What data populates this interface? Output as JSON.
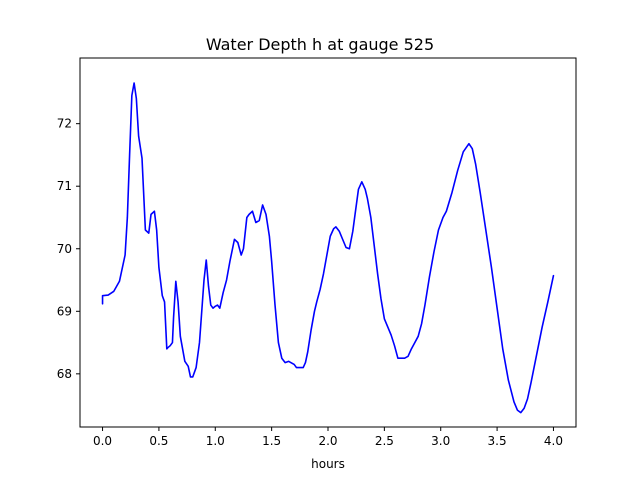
{
  "chart_data": {
    "type": "line",
    "title": "Water Depth h at gauge 525",
    "xlabel": "hours",
    "ylabel": "",
    "xlim": [
      -0.2,
      4.2
    ],
    "ylim": [
      67.15,
      73.05
    ],
    "grid": false,
    "x_ticks": [
      0.0,
      0.5,
      1.0,
      1.5,
      2.0,
      2.5,
      3.0,
      3.5,
      4.0
    ],
    "x_tick_labels": [
      "0.0",
      "0.5",
      "1.0",
      "1.5",
      "2.0",
      "2.5",
      "3.0",
      "3.5",
      "4.0"
    ],
    "y_ticks": [
      68,
      69,
      70,
      71,
      72
    ],
    "y_tick_labels": [
      "68",
      "69",
      "70",
      "71",
      "72"
    ],
    "series": [
      {
        "color": "#0000ff",
        "x": [
          0.0,
          0.0,
          0.05,
          0.1,
          0.15,
          0.2,
          0.22,
          0.24,
          0.26,
          0.28,
          0.3,
          0.32,
          0.35,
          0.38,
          0.41,
          0.43,
          0.46,
          0.48,
          0.5,
          0.53,
          0.55,
          0.57,
          0.58,
          0.6,
          0.62,
          0.63,
          0.65,
          0.67,
          0.69,
          0.71,
          0.73,
          0.76,
          0.78,
          0.8,
          0.83,
          0.86,
          0.88,
          0.9,
          0.92,
          0.94,
          0.96,
          0.98,
          1.0,
          1.02,
          1.04,
          1.07,
          1.1,
          1.13,
          1.17,
          1.2,
          1.23,
          1.25,
          1.28,
          1.3,
          1.33,
          1.36,
          1.39,
          1.42,
          1.45,
          1.48,
          1.5,
          1.53,
          1.56,
          1.59,
          1.62,
          1.65,
          1.7,
          1.72,
          1.75,
          1.78,
          1.8,
          1.82,
          1.85,
          1.88,
          1.9,
          1.93,
          1.96,
          1.99,
          2.02,
          2.05,
          2.07,
          2.1,
          2.13,
          2.16,
          2.19,
          2.22,
          2.24,
          2.27,
          2.3,
          2.33,
          2.35,
          2.38,
          2.41,
          2.44,
          2.47,
          2.5,
          2.53,
          2.56,
          2.59,
          2.62,
          2.65,
          2.68,
          2.71,
          2.74,
          2.77,
          2.8,
          2.83,
          2.86,
          2.9,
          2.94,
          2.98,
          3.02,
          3.05,
          3.1,
          3.15,
          3.2,
          3.25,
          3.28,
          3.31,
          3.35,
          3.4,
          3.45,
          3.5,
          3.55,
          3.6,
          3.65,
          3.68,
          3.71,
          3.74,
          3.77,
          3.8,
          3.85,
          3.9,
          3.95,
          4.0
        ],
        "y": [
          69.12,
          69.25,
          69.26,
          69.32,
          69.48,
          69.9,
          70.5,
          71.5,
          72.45,
          72.65,
          72.4,
          71.8,
          71.45,
          70.3,
          70.25,
          70.55,
          70.6,
          70.3,
          69.7,
          69.25,
          69.15,
          68.4,
          68.42,
          68.45,
          68.5,
          68.9,
          69.48,
          69.15,
          68.6,
          68.4,
          68.2,
          68.12,
          67.95,
          67.95,
          68.1,
          68.5,
          69.0,
          69.5,
          69.82,
          69.4,
          69.1,
          69.05,
          69.08,
          69.1,
          69.05,
          69.3,
          69.5,
          69.8,
          70.15,
          70.1,
          69.9,
          70.0,
          70.5,
          70.55,
          70.6,
          70.42,
          70.45,
          70.7,
          70.55,
          70.2,
          69.8,
          69.1,
          68.5,
          68.25,
          68.18,
          68.2,
          68.15,
          68.1,
          68.1,
          68.1,
          68.18,
          68.35,
          68.7,
          69.0,
          69.15,
          69.35,
          69.6,
          69.9,
          70.2,
          70.32,
          70.35,
          70.28,
          70.15,
          70.02,
          70.0,
          70.28,
          70.55,
          70.95,
          71.07,
          70.95,
          70.8,
          70.5,
          70.05,
          69.6,
          69.2,
          68.88,
          68.75,
          68.62,
          68.45,
          68.25,
          68.25,
          68.25,
          68.28,
          68.4,
          68.5,
          68.6,
          68.8,
          69.1,
          69.55,
          69.95,
          70.3,
          70.5,
          70.6,
          70.9,
          71.25,
          71.55,
          71.68,
          71.6,
          71.35,
          70.9,
          70.3,
          69.7,
          69.05,
          68.4,
          67.9,
          67.55,
          67.42,
          67.38,
          67.45,
          67.6,
          67.85,
          68.3,
          68.75,
          69.15,
          69.57
        ]
      }
    ]
  }
}
